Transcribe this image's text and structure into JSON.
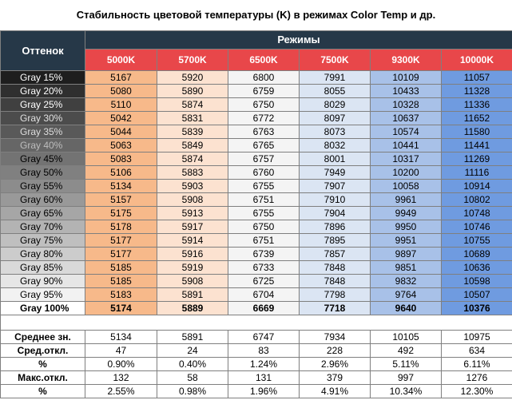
{
  "title": "Стабильность цветовой температуры (K) в режимах Color Temp и др.",
  "header": {
    "shade_label": "Оттенок",
    "modes_label": "Режимы",
    "header_bg": "#263848",
    "mode_bg": "#e8474a"
  },
  "chart_data": {
    "type": "table",
    "title": "Стабильность цветовой температуры (K) в режимах Color Temp и др.",
    "columns": [
      "5000K",
      "5700K",
      "6500K",
      "7500K",
      "9300K",
      "10000K"
    ],
    "rows": [
      {
        "label": "Gray 15%",
        "bg": "#1e1e1e",
        "fg": "#ffffff",
        "values": [
          5167,
          5920,
          6800,
          7991,
          10109,
          11057
        ]
      },
      {
        "label": "Gray 20%",
        "bg": "#2f2f2f",
        "fg": "#ffffff",
        "values": [
          5080,
          5890,
          6759,
          8055,
          10433,
          11328
        ]
      },
      {
        "label": "Gray 25%",
        "bg": "#404040",
        "fg": "#ffffff",
        "values": [
          5110,
          5874,
          6750,
          8029,
          10328,
          11336
        ]
      },
      {
        "label": "Gray 30%",
        "bg": "#4c4c4c",
        "fg": "#e0e0e0",
        "values": [
          5042,
          5831,
          6772,
          8097,
          10637,
          11652
        ]
      },
      {
        "label": "Gray 35%",
        "bg": "#595959",
        "fg": "#dddddd",
        "values": [
          5044,
          5839,
          6763,
          8073,
          10574,
          11580
        ]
      },
      {
        "label": "Gray 40%",
        "bg": "#666666",
        "fg": "#bdbdbd",
        "values": [
          5063,
          5849,
          6765,
          8032,
          10441,
          11441
        ]
      },
      {
        "label": "Gray 45%",
        "bg": "#737373",
        "fg": "#000000",
        "values": [
          5083,
          5874,
          6757,
          8001,
          10317,
          11269
        ]
      },
      {
        "label": "Gray 50%",
        "bg": "#808080",
        "fg": "#000000",
        "values": [
          5106,
          5883,
          6760,
          7949,
          10200,
          11116
        ]
      },
      {
        "label": "Gray 55%",
        "bg": "#8c8c8c",
        "fg": "#000000",
        "values": [
          5134,
          5903,
          6755,
          7907,
          10058,
          10914
        ]
      },
      {
        "label": "Gray 60%",
        "bg": "#999999",
        "fg": "#000000",
        "values": [
          5157,
          5908,
          6751,
          7910,
          9961,
          10802
        ]
      },
      {
        "label": "Gray 65%",
        "bg": "#a6a6a6",
        "fg": "#000000",
        "values": [
          5175,
          5913,
          6755,
          7904,
          9949,
          10748
        ]
      },
      {
        "label": "Gray 70%",
        "bg": "#b3b3b3",
        "fg": "#000000",
        "values": [
          5178,
          5917,
          6750,
          7896,
          9950,
          10746
        ]
      },
      {
        "label": "Gray 75%",
        "bg": "#bfbfbf",
        "fg": "#000000",
        "values": [
          5177,
          5914,
          6751,
          7895,
          9951,
          10755
        ]
      },
      {
        "label": "Gray 80%",
        "bg": "#cccccc",
        "fg": "#000000",
        "values": [
          5177,
          5916,
          6739,
          7857,
          9897,
          10689
        ]
      },
      {
        "label": "Gray 85%",
        "bg": "#d9d9d9",
        "fg": "#000000",
        "values": [
          5185,
          5919,
          6733,
          7848,
          9851,
          10636
        ]
      },
      {
        "label": "Gray 90%",
        "bg": "#e6e6e6",
        "fg": "#000000",
        "values": [
          5185,
          5908,
          6725,
          7848,
          9832,
          10598
        ]
      },
      {
        "label": "Gray 95%",
        "bg": "#f2f2f2",
        "fg": "#000000",
        "values": [
          5183,
          5891,
          6704,
          7798,
          9764,
          10507
        ]
      },
      {
        "label": "Gray 100%",
        "bg": "#ffffff",
        "fg": "#000000",
        "bold": true,
        "values": [
          5174,
          5889,
          6669,
          7718,
          9640,
          10376
        ]
      }
    ],
    "column_colors": [
      "#f7b98a",
      "#fce2d0",
      "#f4f4f4",
      "#dbe5f3",
      "#a8c1e8",
      "#6f9be0"
    ],
    "stats": [
      {
        "label": "Среднее зн.",
        "values": [
          "5134",
          "5891",
          "6747",
          "7934",
          "10105",
          "10975"
        ]
      },
      {
        "label": "Сред.откл.",
        "values": [
          "47",
          "24",
          "83",
          "228",
          "492",
          "634"
        ]
      },
      {
        "label": "%",
        "values": [
          "0.90%",
          "0.40%",
          "1.24%",
          "2.96%",
          "5.11%",
          "6.11%"
        ]
      },
      {
        "label": "Макс.откл.",
        "values": [
          "132",
          "58",
          "131",
          "379",
          "997",
          "1276"
        ]
      },
      {
        "label": "%",
        "values": [
          "2.55%",
          "0.98%",
          "1.96%",
          "4.91%",
          "10.34%",
          "12.30%"
        ]
      }
    ]
  }
}
